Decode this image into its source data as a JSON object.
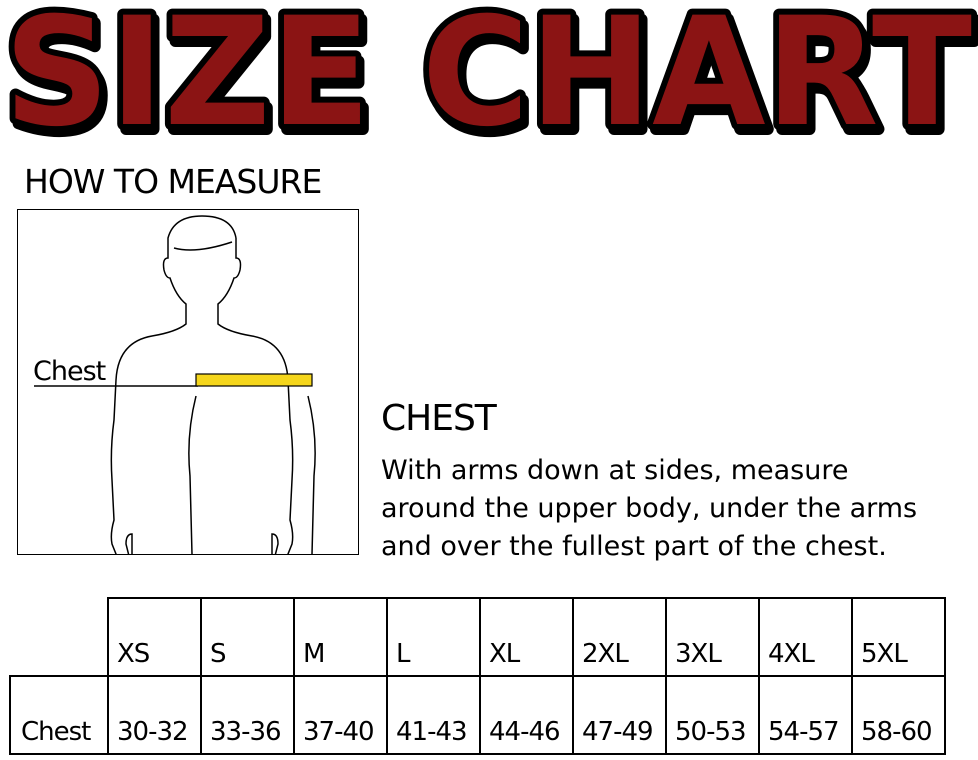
{
  "title": "SIZE CHART",
  "title_color": "#8b1414",
  "how_to_measure": "HOW TO MEASURE",
  "figure_label": "Chest",
  "tape_color": "#f5d61c",
  "chest_heading": "CHEST",
  "chest_description": [
    "With arms down at sides, measure",
    "around the upper body, under the arms",
    "and over the fullest part of the chest."
  ],
  "table": {
    "sizes": [
      "XS",
      "S",
      "M",
      "L",
      "XL",
      "2XL",
      "3XL",
      "4XL",
      "5XL"
    ],
    "row_label": "Chest",
    "values": [
      "30-32",
      "33-36",
      "37-40",
      "41-43",
      "44-46",
      "47-49",
      "50-53",
      "54-57",
      "58-60"
    ]
  }
}
